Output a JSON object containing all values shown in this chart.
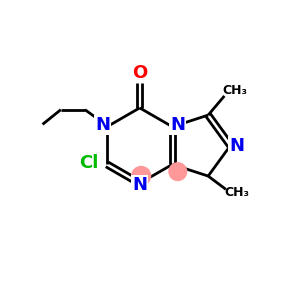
{
  "bg_color": "#ffffff",
  "atom_color_N": "#0000ee",
  "atom_color_O": "#ff0000",
  "atom_color_Cl": "#00bb00",
  "bond_color": "#000000",
  "aromatic_circle_color": "#ff9999",
  "figsize": [
    3.0,
    3.0
  ],
  "dpi": 100,
  "xlim": [
    0,
    10
  ],
  "ylim": [
    0,
    10
  ],
  "bond_lw": 2.0,
  "font_size_atom": 13,
  "font_size_label": 10
}
